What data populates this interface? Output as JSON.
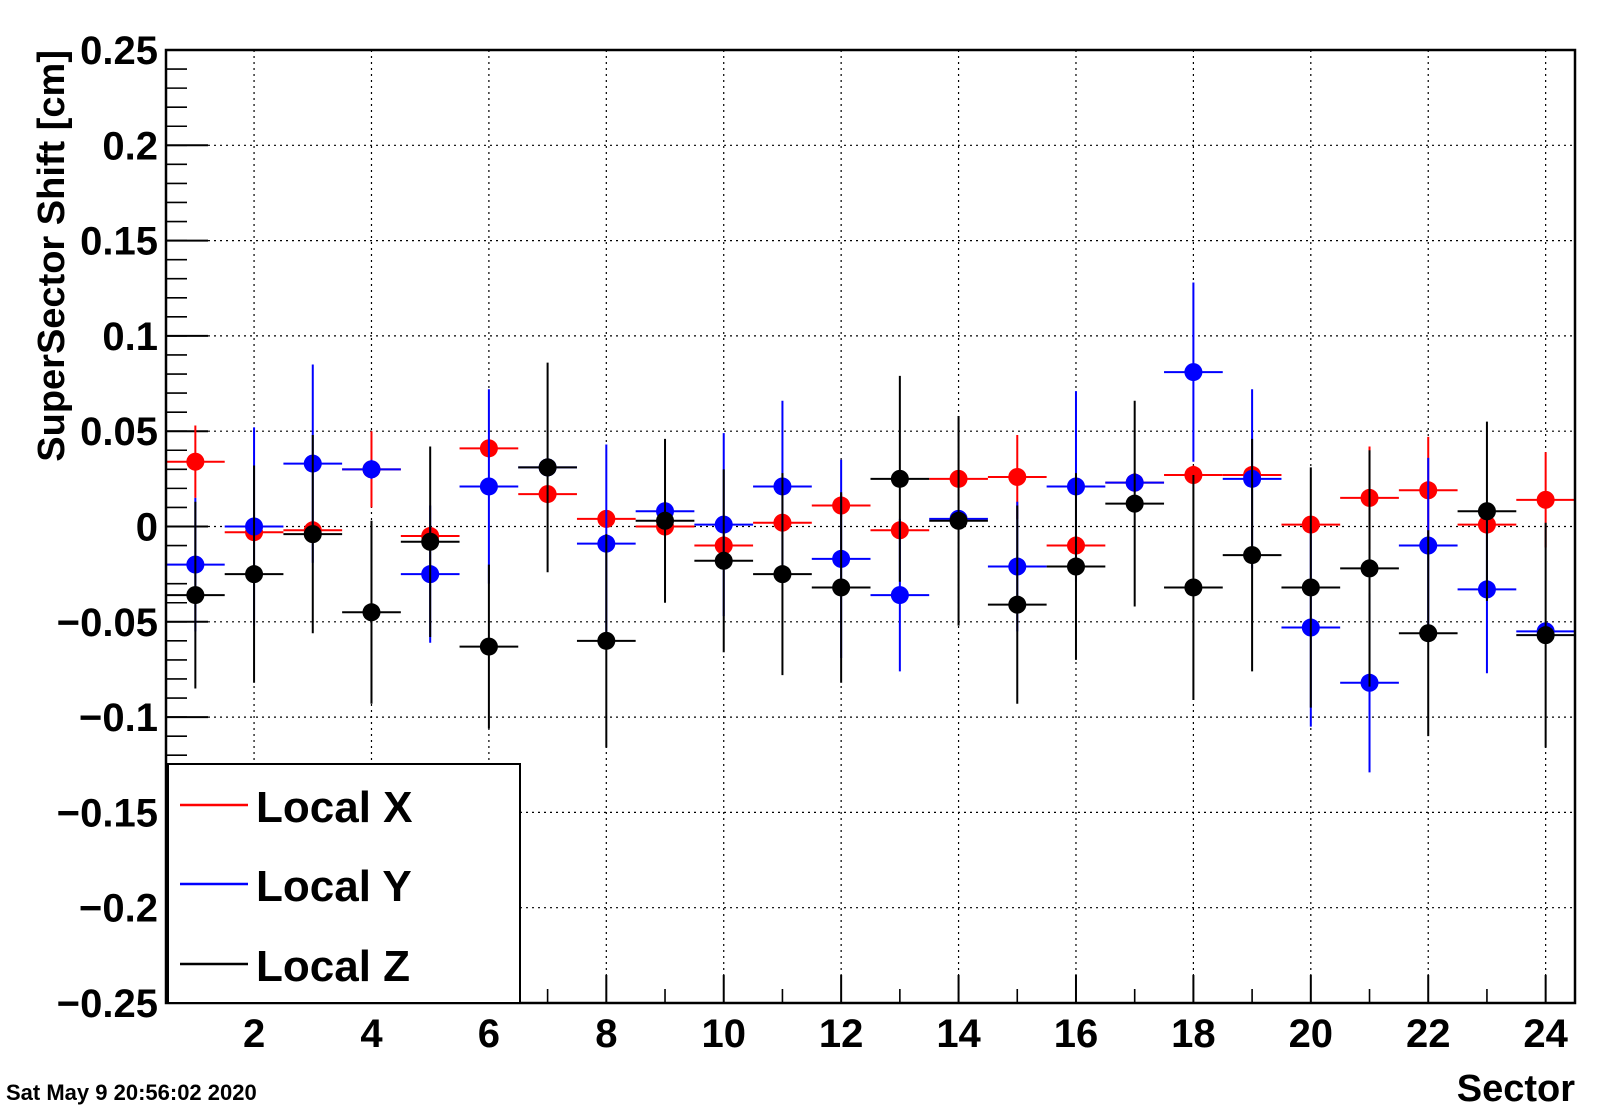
{
  "timestamp": "Sat May  9 20:56:02 2020",
  "chart_data": {
    "type": "scatter",
    "title": "",
    "xlabel": "Sector",
    "ylabel": "SuperSector Shift [cm]",
    "xlim": [
      0.5,
      24.5
    ],
    "ylim": [
      -0.25,
      0.25
    ],
    "grid": true,
    "legend_position": "bottom-left",
    "x_ticks": [
      "2",
      "4",
      "6",
      "8",
      "10",
      "12",
      "14",
      "16",
      "18",
      "20",
      "22",
      "24"
    ],
    "y_ticks": [
      "−0.25",
      "−0.2",
      "−0.15",
      "−0.1",
      "−0.05",
      "0",
      "0.05",
      "0.1",
      "0.15",
      "0.2",
      "0.25"
    ],
    "x_error": 0.5,
    "series": [
      {
        "name": "Local X",
        "color": "#ff0000",
        "x": [
          1,
          2,
          3,
          4,
          5,
          6,
          7,
          8,
          9,
          10,
          11,
          12,
          13,
          14,
          15,
          16,
          17,
          18,
          19,
          20,
          21,
          22,
          23,
          24
        ],
        "y": [
          0.034,
          -0.003,
          -0.002,
          0.03,
          -0.005,
          0.041,
          0.017,
          0.004,
          0.0,
          -0.01,
          0.002,
          0.011,
          -0.002,
          0.025,
          0.026,
          -0.01,
          0.023,
          0.027,
          0.027,
          0.001,
          0.015,
          0.019,
          0.001,
          0.014
        ],
        "err": [
          0.019,
          0.005,
          0.004,
          0.02,
          0.005,
          0.005,
          0.005,
          0.004,
          0.004,
          0.005,
          0.005,
          0.006,
          0.004,
          0.004,
          0.022,
          0.005,
          0.005,
          0.005,
          0.005,
          0.004,
          0.027,
          0.028,
          0.005,
          0.025
        ]
      },
      {
        "name": "Local Y",
        "color": "#0000ff",
        "x": [
          1,
          2,
          3,
          4,
          5,
          6,
          7,
          8,
          9,
          10,
          11,
          12,
          13,
          14,
          15,
          16,
          17,
          18,
          19,
          20,
          21,
          22,
          23,
          24
        ],
        "y": [
          -0.02,
          0.0,
          0.033,
          0.03,
          -0.025,
          0.021,
          0.031,
          -0.009,
          0.008,
          0.001,
          0.021,
          -0.017,
          -0.036,
          0.004,
          -0.021,
          0.021,
          0.023,
          0.081,
          0.025,
          -0.053,
          -0.082,
          -0.01,
          -0.033,
          -0.055
        ],
        "err": [
          0.035,
          0.052,
          0.052,
          0.005,
          0.036,
          0.051,
          0.005,
          0.052,
          0.005,
          0.048,
          0.045,
          0.052,
          0.04,
          0.004,
          0.034,
          0.05,
          0.005,
          0.047,
          0.047,
          0.052,
          0.047,
          0.046,
          0.044,
          0.005
        ]
      },
      {
        "name": "Local Z",
        "color": "#000000",
        "x": [
          1,
          2,
          3,
          4,
          5,
          6,
          7,
          8,
          9,
          10,
          11,
          12,
          13,
          14,
          15,
          16,
          17,
          18,
          19,
          20,
          21,
          22,
          23,
          24
        ],
        "y": [
          -0.036,
          -0.025,
          -0.004,
          -0.045,
          -0.008,
          -0.063,
          0.031,
          -0.06,
          0.003,
          -0.018,
          -0.025,
          -0.032,
          0.025,
          0.003,
          -0.041,
          -0.021,
          0.012,
          -0.032,
          -0.015,
          -0.032,
          -0.022,
          -0.056,
          0.008,
          -0.057
        ],
        "err": [
          0.049,
          0.057,
          0.052,
          0.048,
          0.05,
          0.043,
          0.055,
          0.056,
          0.043,
          0.048,
          0.053,
          0.05,
          0.054,
          0.055,
          0.052,
          0.049,
          0.054,
          0.059,
          0.061,
          0.063,
          0.062,
          0.054,
          0.047,
          0.059
        ]
      }
    ]
  }
}
